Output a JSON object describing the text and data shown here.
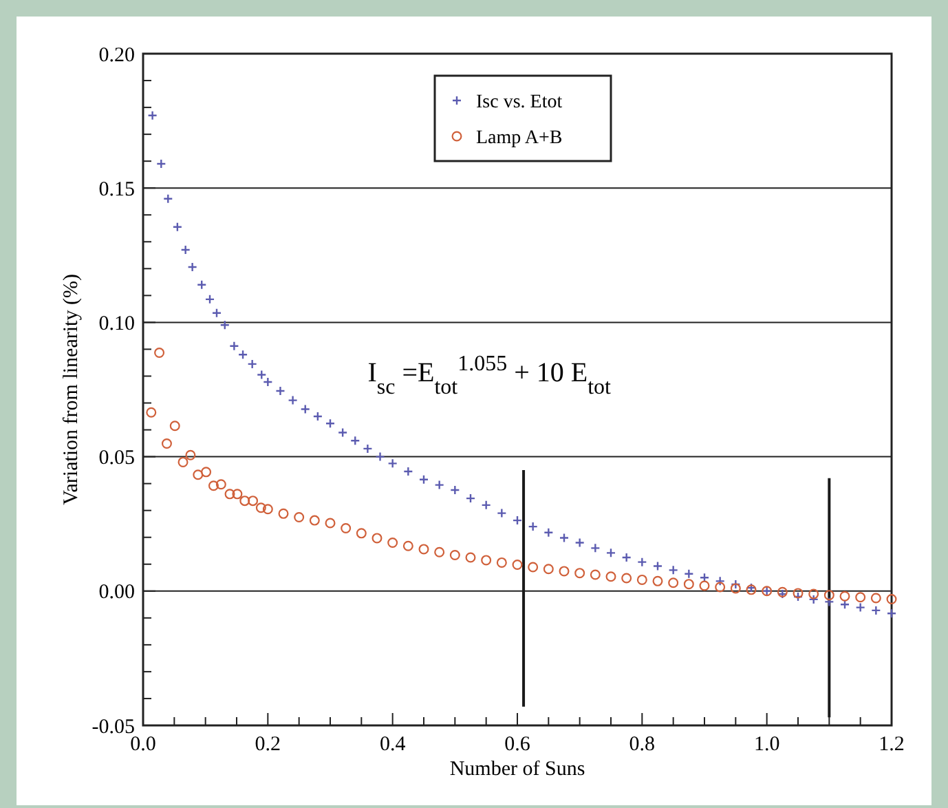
{
  "chart_data": {
    "type": "scatter",
    "xlabel": "Number of Suns",
    "ylabel": "Variation from linearity (%)",
    "xlim": [
      0,
      1.2
    ],
    "ylim": [
      -0.05,
      0.2
    ],
    "xticks": [
      {
        "value": 0,
        "label": "0.0"
      },
      {
        "value": 0.05,
        "label": null
      },
      {
        "value": 0.1,
        "label": null
      },
      {
        "value": 0.15,
        "label": null
      },
      {
        "value": 0.2,
        "label": "0.2"
      },
      {
        "value": 0.25,
        "label": null
      },
      {
        "value": 0.3,
        "label": null
      },
      {
        "value": 0.35,
        "label": null
      },
      {
        "value": 0.4,
        "label": "0.4"
      },
      {
        "value": 0.45,
        "label": null
      },
      {
        "value": 0.5,
        "label": null
      },
      {
        "value": 0.55,
        "label": null
      },
      {
        "value": 0.6,
        "label": "0.6"
      },
      {
        "value": 0.65,
        "label": null
      },
      {
        "value": 0.7,
        "label": null
      },
      {
        "value": 0.75,
        "label": null
      },
      {
        "value": 0.8,
        "label": "0.8"
      },
      {
        "value": 0.85,
        "label": null
      },
      {
        "value": 0.9,
        "label": null
      },
      {
        "value": 0.95,
        "label": null
      },
      {
        "value": 1,
        "label": "1.0"
      },
      {
        "value": 1.05,
        "label": null
      },
      {
        "value": 1.1,
        "label": null
      },
      {
        "value": 1.15,
        "label": null
      },
      {
        "value": 1.2,
        "label": "1.2"
      }
    ],
    "yticks": [
      {
        "value": -0.05,
        "label": "-0.05"
      },
      {
        "value": -0.04,
        "label": null
      },
      {
        "value": -0.03,
        "label": null
      },
      {
        "value": -0.02,
        "label": null
      },
      {
        "value": -0.01,
        "label": null
      },
      {
        "value": 0,
        "label": "0.00"
      },
      {
        "value": 0.01,
        "label": null
      },
      {
        "value": 0.02,
        "label": null
      },
      {
        "value": 0.03,
        "label": null
      },
      {
        "value": 0.04,
        "label": null
      },
      {
        "value": 0.05,
        "label": "0.05"
      },
      {
        "value": 0.06,
        "label": null
      },
      {
        "value": 0.07,
        "label": null
      },
      {
        "value": 0.08,
        "label": null
      },
      {
        "value": 0.09,
        "label": null
      },
      {
        "value": 0.1,
        "label": "0.10"
      },
      {
        "value": 0.11,
        "label": null
      },
      {
        "value": 0.12,
        "label": null
      },
      {
        "value": 0.13,
        "label": null
      },
      {
        "value": 0.14,
        "label": null
      },
      {
        "value": 0.15,
        "label": "0.15"
      },
      {
        "value": 0.16,
        "label": null
      },
      {
        "value": 0.17,
        "label": null
      },
      {
        "value": 0.18,
        "label": null
      },
      {
        "value": 0.19,
        "label": null
      },
      {
        "value": 0.2,
        "label": "0.20"
      }
    ],
    "grid": "y",
    "legend": "top",
    "annotations": [
      "I$_{sc}$ =E$_{tot}$$^{1.055}$ + 10 E$_{tot}$"
    ],
    "series": [
      {
        "name": "Isc vs. Etot",
        "color": "#5b5bb0",
        "marker": "cross",
        "x": [
          0.015,
          0.029,
          0.04,
          0.055,
          0.068,
          0.079,
          0.094,
          0.107,
          0.118,
          0.131,
          0.146,
          0.16,
          0.175,
          0.19,
          0.2,
          0.22,
          0.24,
          0.26,
          0.28,
          0.3,
          0.32,
          0.34,
          0.36,
          0.38,
          0.4,
          0.425,
          0.45,
          0.475,
          0.5,
          0.525,
          0.55,
          0.575,
          0.6,
          0.625,
          0.65,
          0.675,
          0.7,
          0.725,
          0.75,
          0.775,
          0.8,
          0.825,
          0.85,
          0.875,
          0.9,
          0.925,
          0.95,
          0.975,
          1.0,
          1.025,
          1.05,
          1.075,
          1.1,
          1.125,
          1.15,
          1.175,
          1.2
        ],
        "values": [
          0.177,
          0.159,
          0.146,
          0.1355,
          0.127,
          0.1206,
          0.114,
          0.1086,
          0.1035,
          0.099,
          0.0912,
          0.088,
          0.0845,
          0.0805,
          0.0778,
          0.0745,
          0.071,
          0.0677,
          0.065,
          0.0624,
          0.059,
          0.056,
          0.053,
          0.05,
          0.0475,
          0.0445,
          0.0415,
          0.0395,
          0.0376,
          0.0345,
          0.032,
          0.029,
          0.0263,
          0.024,
          0.0218,
          0.0198,
          0.018,
          0.016,
          0.0142,
          0.0125,
          0.0108,
          0.0093,
          0.0078,
          0.0064,
          0.005,
          0.0037,
          0.0025,
          0.0012,
          0,
          -0.0011,
          -0.0021,
          -0.0031,
          -0.004,
          -0.005,
          -0.0061,
          -0.0072,
          -0.0083
        ]
      },
      {
        "name": "Lamp A+B",
        "color": "#d0603a",
        "marker": "circle",
        "x": [
          0.013,
          0.026,
          0.038,
          0.051,
          0.064,
          0.076,
          0.088,
          0.101,
          0.113,
          0.125,
          0.139,
          0.151,
          0.163,
          0.176,
          0.189,
          0.2,
          0.225,
          0.25,
          0.275,
          0.3,
          0.325,
          0.35,
          0.375,
          0.4,
          0.425,
          0.45,
          0.475,
          0.5,
          0.525,
          0.55,
          0.575,
          0.6,
          0.625,
          0.65,
          0.675,
          0.7,
          0.725,
          0.75,
          0.775,
          0.8,
          0.825,
          0.85,
          0.875,
          0.9,
          0.925,
          0.95,
          0.975,
          1.0,
          1.025,
          1.05,
          1.075,
          1.1,
          1.125,
          1.15,
          1.175,
          1.2
        ],
        "values": [
          0.0665,
          0.0887,
          0.0549,
          0.0615,
          0.048,
          0.0506,
          0.0433,
          0.0443,
          0.0392,
          0.0397,
          0.0361,
          0.0361,
          0.0336,
          0.0336,
          0.031,
          0.0305,
          0.0288,
          0.0275,
          0.0263,
          0.0253,
          0.0234,
          0.0215,
          0.0197,
          0.018,
          0.0168,
          0.0156,
          0.0145,
          0.0134,
          0.0125,
          0.0115,
          0.0106,
          0.0098,
          0.0089,
          0.0082,
          0.0074,
          0.0067,
          0.0061,
          0.0054,
          0.0048,
          0.0042,
          0.0037,
          0.0031,
          0.0026,
          0.002,
          0.0015,
          0.001,
          0.0005,
          0,
          -0.0004,
          -0.0008,
          -0.0011,
          -0.0015,
          -0.0019,
          -0.0023,
          -0.0026,
          -0.003
        ]
      },
      {
        "type": "line",
        "color": "#1a1a1a",
        "x": [
          0.61,
          0.61
        ],
        "values": [
          0.045,
          -0.043
        ]
      },
      {
        "type": "line",
        "color": "#1a1a1a",
        "x": [
          1.1,
          1.1
        ],
        "values": [
          0.042,
          -0.047
        ]
      }
    ]
  }
}
